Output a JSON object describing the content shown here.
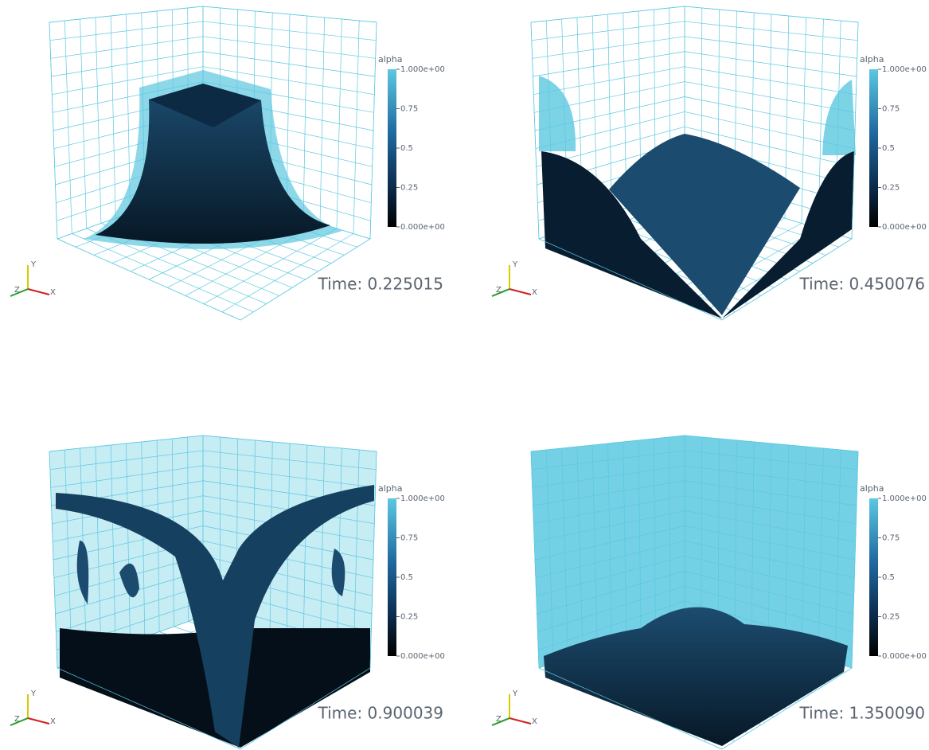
{
  "panels": [
    {
      "time": "Time: 0.225015",
      "axes": {
        "x": "X",
        "y": "Y",
        "z": "Z"
      },
      "colorbar": {
        "title": "alpha",
        "range": [
          0,
          1
        ],
        "ticks": [
          {
            "value": 1,
            "label": "1.000e+00"
          },
          0.75,
          0.5,
          0.25,
          {
            "value": 0,
            "label": "0.000e+00"
          }
        ]
      }
    },
    {
      "time": "Time: 0.450076",
      "axes": {
        "x": "X",
        "y": "Y",
        "z": "Z"
      },
      "colorbar": {
        "title": "alpha",
        "range": [
          0,
          1
        ],
        "ticks": [
          {
            "value": 1,
            "label": "1.000e+00"
          },
          0.75,
          0.5,
          0.25,
          {
            "value": 0,
            "label": "0.000e+00"
          }
        ]
      }
    },
    {
      "time": "Time: 0.900039",
      "axes": {
        "x": "X",
        "y": "Y",
        "z": "Z"
      },
      "colorbar": {
        "title": "alpha",
        "range": [
          0,
          1
        ],
        "ticks": [
          {
            "value": 1,
            "label": "1.000e+00"
          },
          0.75,
          0.5,
          0.25,
          {
            "value": 0,
            "label": "0.000e+00"
          }
        ]
      }
    },
    {
      "time": "Time: 1.350090",
      "axes": {
        "x": "X",
        "y": "Y",
        "z": "Z"
      },
      "colorbar": {
        "title": "alpha",
        "range": [
          0,
          1
        ],
        "ticks": [
          {
            "value": 1,
            "label": "1.000e+00"
          },
          0.75,
          0.5,
          0.25,
          {
            "value": 0,
            "label": "0.000e+00"
          }
        ]
      }
    }
  ]
}
